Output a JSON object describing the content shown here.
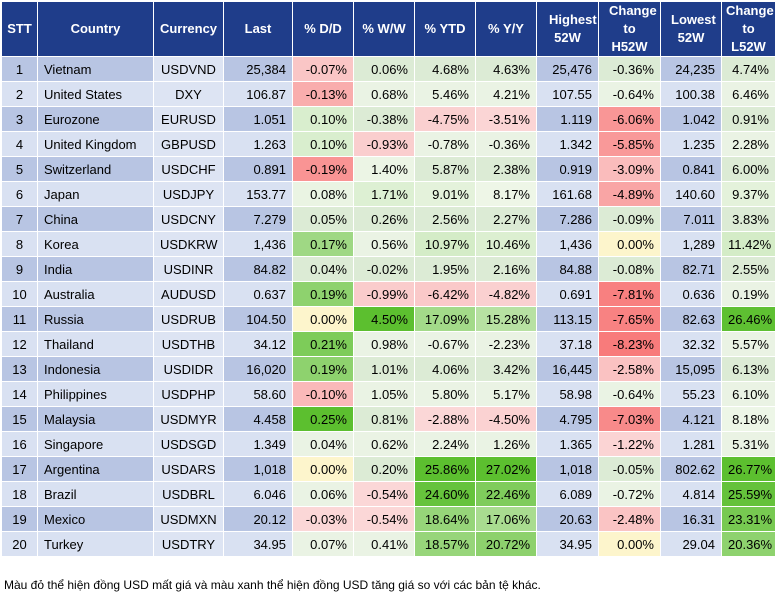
{
  "chart_data": {
    "type": "table",
    "columns": [
      "STT",
      "Country",
      "Currency",
      "Last",
      "% D/D",
      "% W/W",
      "% YTD",
      "% Y/Y",
      "Highest 52W",
      "Change to H52W",
      "Lowest 52W",
      "Change to L52W"
    ],
    "rows": [
      [
        "1",
        "Vietnam",
        "USDVND",
        "25,384",
        "-0.07%",
        "0.06%",
        "4.68%",
        "4.63%",
        "25,476",
        "-0.36%",
        "24,235",
        "4.74%"
      ],
      [
        "2",
        "United States",
        "DXY",
        "106.87",
        "-0.13%",
        "0.68%",
        "5.46%",
        "4.21%",
        "107.55",
        "-0.64%",
        "100.38",
        "6.46%"
      ],
      [
        "3",
        "Eurozone",
        "EURUSD",
        "1.051",
        "0.10%",
        "-0.38%",
        "-4.75%",
        "-3.51%",
        "1.119",
        "-6.06%",
        "1.042",
        "0.91%"
      ],
      [
        "4",
        "United Kingdom",
        "GBPUSD",
        "1.263",
        "0.10%",
        "-0.93%",
        "-0.78%",
        "-0.36%",
        "1.342",
        "-5.85%",
        "1.235",
        "2.28%"
      ],
      [
        "5",
        "Switzerland",
        "USDCHF",
        "0.891",
        "-0.19%",
        "1.40%",
        "5.87%",
        "2.38%",
        "0.919",
        "-3.09%",
        "0.841",
        "6.00%"
      ],
      [
        "6",
        "Japan",
        "USDJPY",
        "153.77",
        "0.08%",
        "1.71%",
        "9.01%",
        "8.17%",
        "161.68",
        "-4.89%",
        "140.60",
        "9.37%"
      ],
      [
        "7",
        "China",
        "USDCNY",
        "7.279",
        "0.05%",
        "0.26%",
        "2.56%",
        "2.27%",
        "7.286",
        "-0.09%",
        "7.011",
        "3.83%"
      ],
      [
        "8",
        "Korea",
        "USDKRW",
        "1,436",
        "0.17%",
        "0.56%",
        "10.97%",
        "10.46%",
        "1,436",
        "0.00%",
        "1,289",
        "11.42%"
      ],
      [
        "9",
        "India",
        "USDINR",
        "84.82",
        "0.04%",
        "-0.02%",
        "1.95%",
        "2.16%",
        "84.88",
        "-0.08%",
        "82.71",
        "2.55%"
      ],
      [
        "10",
        "Australia",
        "AUDUSD",
        "0.637",
        "0.19%",
        "-0.99%",
        "-6.42%",
        "-4.82%",
        "0.691",
        "-7.81%",
        "0.636",
        "0.19%"
      ],
      [
        "11",
        "Russia",
        "USDRUB",
        "104.50",
        "0.00%",
        "4.50%",
        "17.09%",
        "15.28%",
        "113.15",
        "-7.65%",
        "82.63",
        "26.46%"
      ],
      [
        "12",
        "Thailand",
        "USDTHB",
        "34.12",
        "0.21%",
        "0.98%",
        "-0.67%",
        "-2.23%",
        "37.18",
        "-8.23%",
        "32.32",
        "5.57%"
      ],
      [
        "13",
        "Indonesia",
        "USDIDR",
        "16,020",
        "0.19%",
        "1.01%",
        "4.06%",
        "3.42%",
        "16,445",
        "-2.58%",
        "15,095",
        "6.13%"
      ],
      [
        "14",
        "Philippines",
        "USDPHP",
        "58.60",
        "-0.10%",
        "1.05%",
        "5.80%",
        "5.17%",
        "58.98",
        "-0.64%",
        "55.23",
        "6.10%"
      ],
      [
        "15",
        "Malaysia",
        "USDMYR",
        "4.458",
        "0.25%",
        "0.81%",
        "-2.88%",
        "-4.50%",
        "4.795",
        "-7.03%",
        "4.121",
        "8.18%"
      ],
      [
        "16",
        "Singapore",
        "USDSGD",
        "1.349",
        "0.04%",
        "0.62%",
        "2.24%",
        "1.26%",
        "1.365",
        "-1.22%",
        "1.281",
        "5.31%"
      ],
      [
        "17",
        "Argentina",
        "USDARS",
        "1,018",
        "0.00%",
        "0.20%",
        "25.86%",
        "27.02%",
        "1,018",
        "-0.05%",
        "802.62",
        "26.77%"
      ],
      [
        "18",
        "Brazil",
        "USDBRL",
        "6.046",
        "0.06%",
        "-0.54%",
        "24.60%",
        "22.46%",
        "6.089",
        "-0.72%",
        "4.814",
        "25.59%"
      ],
      [
        "19",
        "Mexico",
        "USDMXN",
        "20.12",
        "-0.03%",
        "-0.54%",
        "18.64%",
        "17.06%",
        "20.63",
        "-2.48%",
        "16.31",
        "23.31%"
      ],
      [
        "20",
        "Turkey",
        "USDTRY",
        "34.95",
        "0.07%",
        "0.41%",
        "18.57%",
        "20.72%",
        "34.95",
        "0.00%",
        "29.04",
        "20.36%"
      ]
    ],
    "footnote": "Màu đỏ thể hiện đồng USD mất giá và màu xanh thể hiện đồng USD tăng giá so với các bản tệ khác."
  },
  "colors": {
    "header_bg": "#1f3d8a",
    "header_text": "#ffffff",
    "negative_scale": [
      "#fbe3e3",
      "#f87b7b"
    ],
    "positive_scale": [
      "#eef6e8",
      "#5cbf2f"
    ],
    "neutral": "#fdf5cc"
  }
}
